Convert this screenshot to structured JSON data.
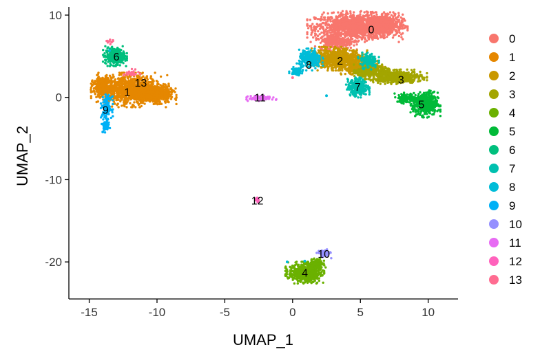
{
  "chart_data": {
    "type": "scatter",
    "title": "",
    "xlabel": "UMAP_1",
    "ylabel": "UMAP_2",
    "xlim": [
      -16.5,
      12.2
    ],
    "ylim": [
      -24.5,
      11
    ],
    "xticks": [
      -15,
      -10,
      -5,
      0,
      5,
      10
    ],
    "yticks": [
      -20,
      -10,
      0,
      10
    ],
    "xtick_labels": [
      "-15",
      "-10",
      "-5",
      "0",
      "5",
      "10"
    ],
    "ytick_labels": [
      "-20",
      "-10",
      "0",
      "10"
    ],
    "grid": false,
    "legend_position": "right",
    "clusters": [
      {
        "label": "0",
        "color": "#F8766D",
        "center": [
          5.8,
          8.3
        ],
        "blobs": [
          [
            4.6,
            8.6,
            3.2,
            1.7,
            1200
          ],
          [
            6.5,
            8.8,
            1.8,
            1.4,
            500
          ],
          [
            3.2,
            6.8,
            1.4,
            1.0,
            300
          ]
        ]
      },
      {
        "label": "1",
        "color": "#E58700",
        "center": [
          -12.2,
          0.7
        ],
        "blobs": [
          [
            -12.0,
            0.9,
            2.6,
            1.9,
            1100
          ],
          [
            -10.0,
            0.4,
            1.3,
            1.1,
            450
          ],
          [
            -14.0,
            1.3,
            0.8,
            1.2,
            250
          ]
        ]
      },
      {
        "label": "2",
        "color": "#C99800",
        "center": [
          3.5,
          4.5
        ],
        "blobs": [
          [
            3.3,
            4.7,
            2.0,
            1.3,
            800
          ],
          [
            5.0,
            3.6,
            1.5,
            0.9,
            350
          ]
        ]
      },
      {
        "label": "3",
        "color": "#A3A500",
        "center": [
          8.0,
          2.2
        ],
        "blobs": [
          [
            7.6,
            2.5,
            2.1,
            0.8,
            600
          ],
          [
            5.8,
            3.1,
            1.2,
            0.8,
            250
          ]
        ]
      },
      {
        "label": "4",
        "color": "#6BB100",
        "center": [
          0.9,
          -21.3
        ],
        "blobs": [
          [
            0.9,
            -21.3,
            1.3,
            1.2,
            600
          ],
          [
            1.8,
            -20.2,
            0.6,
            0.6,
            120
          ]
        ]
      },
      {
        "label": "5",
        "color": "#00BA38",
        "center": [
          9.5,
          -0.8
        ],
        "blobs": [
          [
            9.8,
            -0.8,
            1.0,
            1.5,
            500
          ],
          [
            8.4,
            -0.1,
            0.8,
            0.6,
            120
          ]
        ]
      },
      {
        "label": "6",
        "color": "#00BF7D",
        "center": [
          -13.0,
          5.0
        ],
        "blobs": [
          [
            -13.1,
            5.0,
            0.8,
            1.1,
            350
          ]
        ]
      },
      {
        "label": "7",
        "color": "#00C0AF",
        "center": [
          4.8,
          1.3
        ],
        "blobs": [
          [
            4.8,
            1.2,
            0.8,
            1.1,
            300
          ],
          [
            5.6,
            4.5,
            0.7,
            1.0,
            130
          ]
        ]
      },
      {
        "label": "8",
        "color": "#00BCD8",
        "center": [
          1.2,
          4.0
        ],
        "blobs": [
          [
            1.3,
            4.6,
            0.9,
            1.2,
            250
          ],
          [
            0.3,
            3.2,
            0.5,
            0.5,
            80
          ]
        ]
      },
      {
        "label": "9",
        "color": "#00B0F6",
        "center": [
          -13.8,
          -1.5
        ],
        "blobs": [
          [
            -13.7,
            -1.2,
            0.4,
            1.4,
            140
          ],
          [
            -13.8,
            -3.5,
            0.3,
            0.7,
            50
          ]
        ]
      },
      {
        "label": "10",
        "color": "#9590FF",
        "center": [
          2.3,
          -19.0
        ],
        "blobs": [
          [
            2.3,
            -19.0,
            0.5,
            0.5,
            70
          ]
        ]
      },
      {
        "label": "11",
        "color": "#E76BF3",
        "center": [
          -2.4,
          0.0
        ],
        "blobs": [
          [
            -2.3,
            -0.1,
            1.0,
            0.3,
            110
          ]
        ]
      },
      {
        "label": "12",
        "color": "#FF62BC",
        "center": [
          -2.6,
          -12.5
        ],
        "blobs": [
          [
            -2.6,
            -12.4,
            0.15,
            0.3,
            15
          ]
        ]
      },
      {
        "label": "13",
        "color": "#FF6C91",
        "center": [
          -11.2,
          1.8
        ],
        "blobs": [
          [
            -11.9,
            2.9,
            0.6,
            0.5,
            25
          ],
          [
            -13.5,
            6.8,
            0.3,
            0.3,
            10
          ]
        ]
      }
    ],
    "stray_points": [
      {
        "label": "8",
        "x": -13.5,
        "y": 5.7
      },
      {
        "label": "8",
        "x": 0.9,
        "y": -19.9
      },
      {
        "label": "8",
        "x": -0.4,
        "y": -20.0
      },
      {
        "label": "8",
        "x": 2.5,
        "y": 0.2
      },
      {
        "label": "13",
        "x": 0.0,
        "y": 2.4
      },
      {
        "label": "9",
        "x": -14.0,
        "y": -4.2
      }
    ]
  }
}
